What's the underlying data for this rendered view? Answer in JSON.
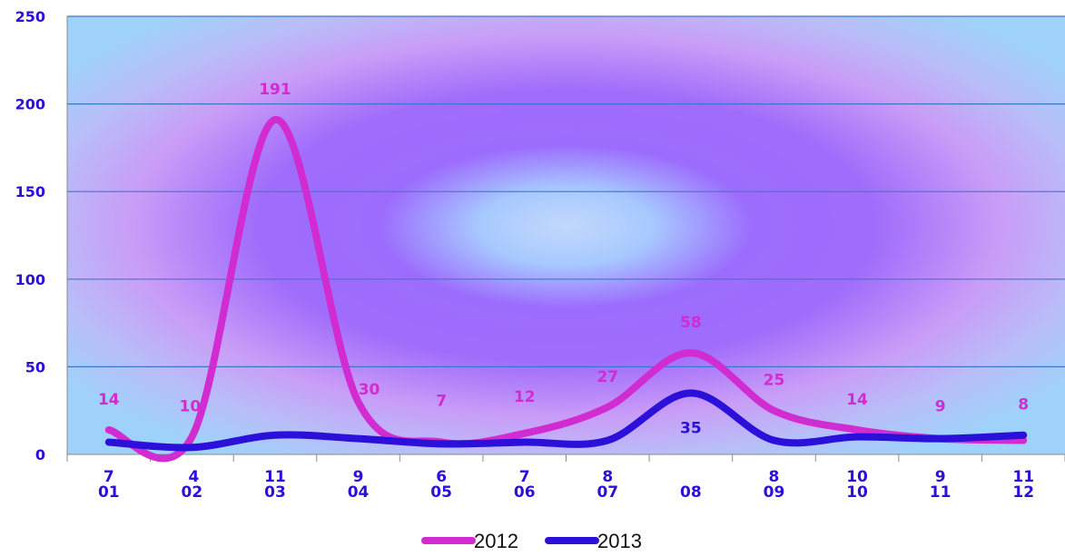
{
  "chart_data": {
    "type": "line",
    "title": "",
    "xlabel": "",
    "ylabel": "",
    "categories": [
      "01",
      "02",
      "03",
      "04",
      "05",
      "06",
      "07",
      "08",
      "09",
      "10",
      "11",
      "12"
    ],
    "ylim": [
      0,
      250
    ],
    "yticks": [
      0,
      50,
      100,
      150,
      200,
      250
    ],
    "grid": true,
    "legend_position": "bottom",
    "smooth": true,
    "series": [
      {
        "name": "2012",
        "color": "#d12cd1",
        "values": [
          14,
          10,
          191,
          30,
          7,
          12,
          27,
          58,
          25,
          14,
          9,
          8
        ]
      },
      {
        "name": "2013",
        "color": "#2a10d8",
        "values": [
          7,
          4,
          11,
          9,
          6,
          7,
          8,
          35,
          8,
          10,
          9,
          11
        ]
      }
    ]
  }
}
